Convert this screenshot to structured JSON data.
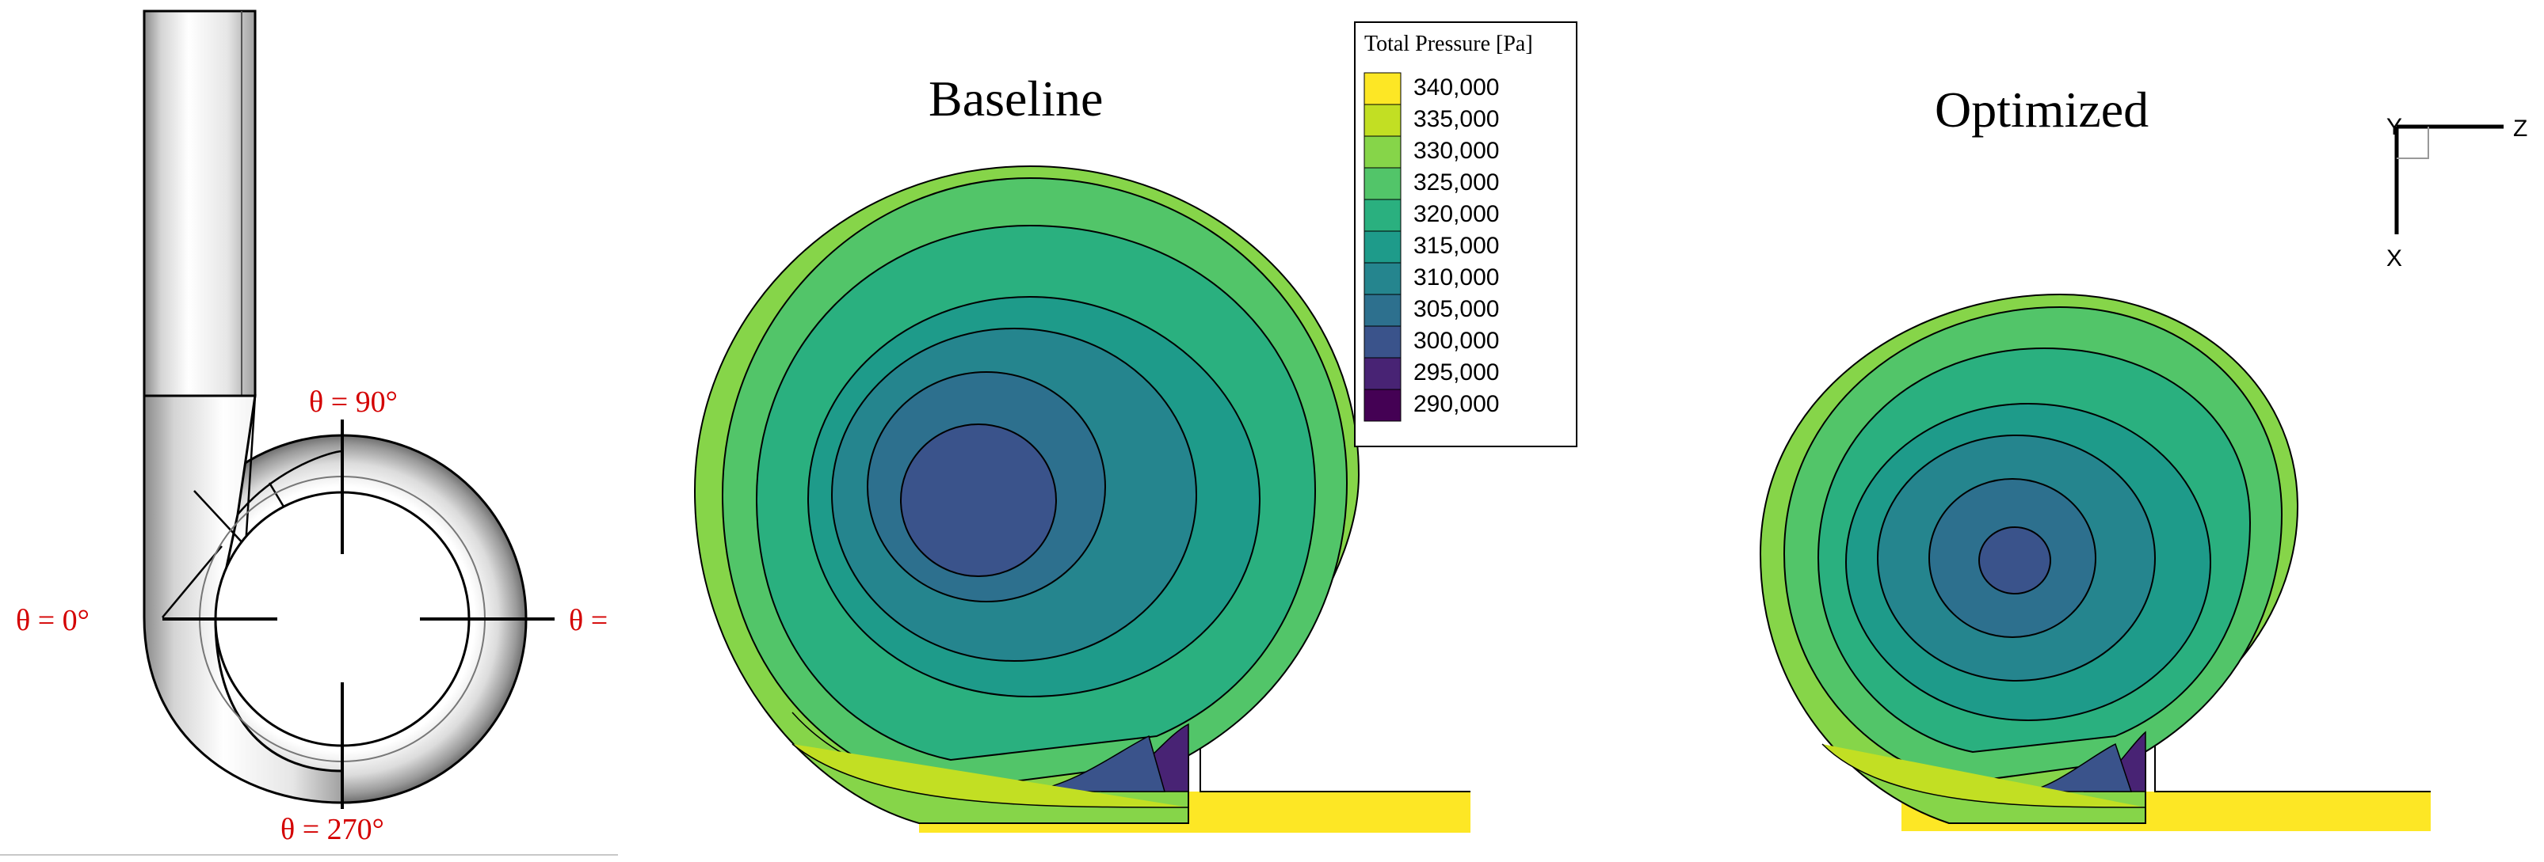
{
  "schematic": {
    "theta_0": "θ  = 0°",
    "theta_90": "θ = 90°",
    "theta_180": "θ =",
    "theta_270": "θ = 270°"
  },
  "panels": {
    "baseline_title": "Baseline",
    "optimized_title": "Optimized"
  },
  "legend": {
    "title": "Total Pressure [Pa]",
    "levels": [
      {
        "label": "340,000",
        "color": "#fde725"
      },
      {
        "label": "335,000",
        "color": "#c2df23"
      },
      {
        "label": "330,000",
        "color": "#86d549"
      },
      {
        "label": "325,000",
        "color": "#52c569"
      },
      {
        "label": "320,000",
        "color": "#2ab07f"
      },
      {
        "label": "315,000",
        "color": "#1e9b8a"
      },
      {
        "label": "310,000",
        "color": "#25858e"
      },
      {
        "label": "305,000",
        "color": "#2d708e"
      },
      {
        "label": "300,000",
        "color": "#3a538b"
      },
      {
        "label": "295,000",
        "color": "#482374"
      },
      {
        "label": "290,000",
        "color": "#440154"
      }
    ]
  },
  "axes": {
    "y_label": "Y",
    "z_label": "Z",
    "x_label": "X"
  }
}
